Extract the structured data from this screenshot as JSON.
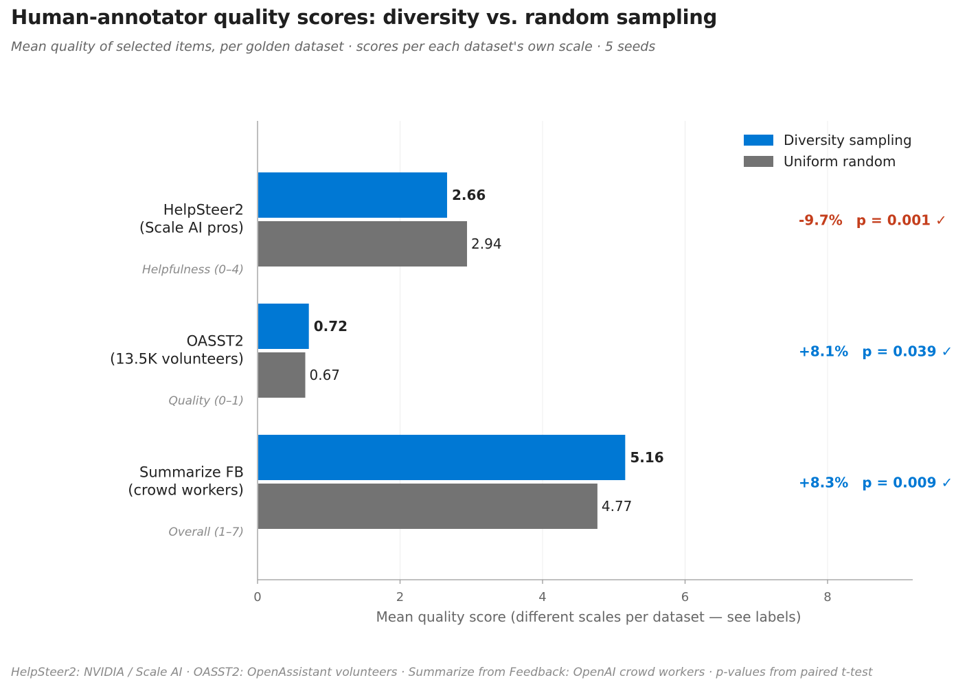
{
  "header": {
    "title": "Human-annotator quality scores: diversity vs. random sampling",
    "subtitle": "Mean quality of selected items, per golden dataset · scores per each dataset's own scale · 5 seeds"
  },
  "footer": {
    "note": "HelpSteer2: NVIDIA / Scale AI · OASST2: OpenAssistant volunteers · Summarize from Feedback: OpenAI crowd workers · p-values from paired t-test"
  },
  "colors": {
    "diversity": "#0078d4",
    "random": "#737373",
    "negative": "#c43e1c",
    "positive": "#0078d4",
    "axis": "#9a9a9a",
    "grid": "#ececec"
  },
  "chart_data": {
    "type": "bar",
    "orientation": "horizontal",
    "categories": [
      {
        "name": [
          "HelpSteer2",
          "(Scale AI pros)"
        ],
        "scale": "Helpfulness (0–4)"
      },
      {
        "name": [
          "OASST2",
          "(13.5K volunteers)"
        ],
        "scale": "Quality (0–1)"
      },
      {
        "name": [
          "Summarize FB",
          "(crowd workers)"
        ],
        "scale": "Overall (1–7)"
      }
    ],
    "series": [
      {
        "name": "Diversity sampling",
        "values": [
          2.66,
          0.72,
          5.16
        ],
        "labels": [
          "2.66",
          "0.72",
          "5.16"
        ],
        "bold": true
      },
      {
        "name": "Uniform random",
        "values": [
          2.94,
          0.67,
          4.77
        ],
        "labels": [
          "2.94",
          "0.67",
          "4.77"
        ],
        "bold": false
      }
    ],
    "annotations": [
      {
        "change": "-9.7%",
        "pvalue": "p = 0.001 ✓",
        "sign": "negative"
      },
      {
        "change": "+8.1%",
        "pvalue": "p = 0.039 ✓",
        "sign": "positive"
      },
      {
        "change": "+8.3%",
        "pvalue": "p = 0.009 ✓",
        "sign": "positive"
      }
    ],
    "xlabel": "Mean quality score (different scales per dataset — see labels)",
    "xlim": [
      0,
      9.2
    ],
    "xticks": [
      0,
      2,
      4,
      6,
      8
    ],
    "grid": true,
    "legend_position": "top-right"
  }
}
